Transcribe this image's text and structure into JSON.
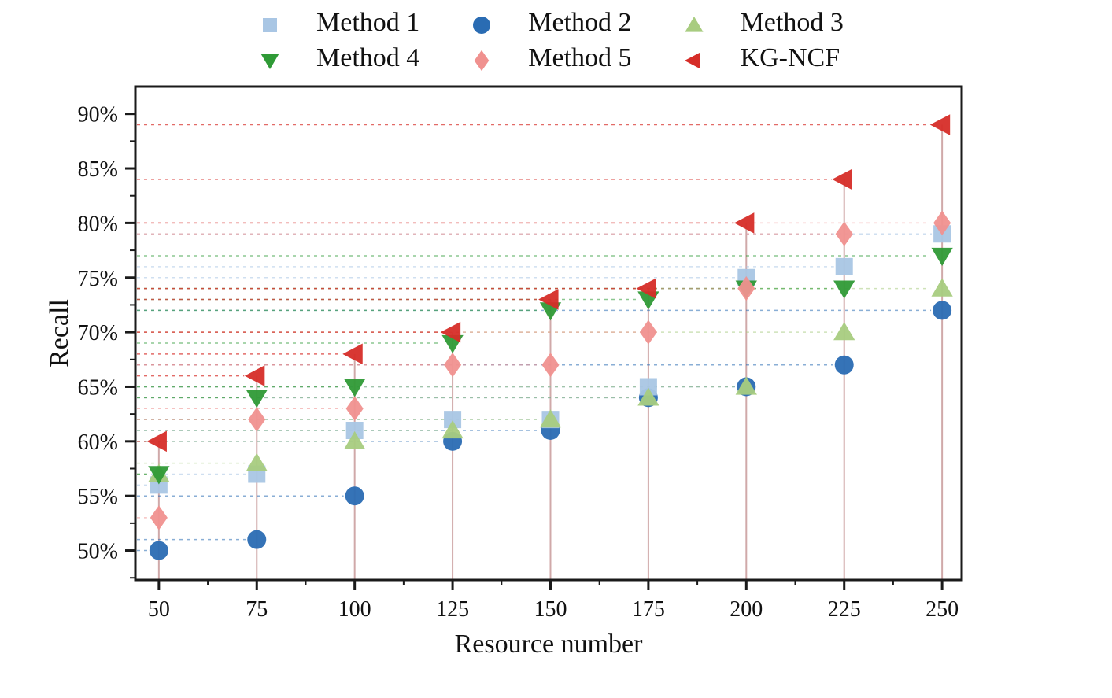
{
  "figure": {
    "background": "#ffffff",
    "frame_color": "#1a1a1a",
    "text_color": "#111111"
  },
  "chart_data": {
    "type": "scatter",
    "title": "",
    "xlabel": "Resource number",
    "ylabel": "Recall",
    "x": [
      50,
      75,
      100,
      125,
      150,
      175,
      200,
      225,
      250
    ],
    "series": [
      {
        "name": "Method 1",
        "marker": "square",
        "color": "#a9c6e4",
        "values": [
          56,
          57,
          61,
          62,
          62,
          65,
          75,
          76,
          79
        ]
      },
      {
        "name": "Method 2",
        "marker": "circle",
        "color": "#2a6cb3",
        "values": [
          50,
          51,
          55,
          60,
          61,
          64,
          65,
          67,
          72
        ]
      },
      {
        "name": "Method 3",
        "marker": "triangle-up",
        "color": "#a8cc80",
        "values": [
          57,
          58,
          60,
          61,
          62,
          64,
          65,
          70,
          74
        ]
      },
      {
        "name": "Method 4",
        "marker": "triangle-down",
        "color": "#2f9a36",
        "values": [
          57,
          64,
          65,
          69,
          72,
          73,
          74,
          74,
          77
        ]
      },
      {
        "name": "Method 5",
        "marker": "diamond",
        "color": "#f0918f",
        "values": [
          53,
          62,
          63,
          67,
          67,
          70,
          74,
          79,
          80
        ]
      },
      {
        "name": "KG-NCF",
        "marker": "triangle-left",
        "color": "#d62d28",
        "values": [
          60,
          66,
          68,
          70,
          73,
          74,
          80,
          84,
          89
        ]
      }
    ],
    "draw_order": [
      1,
      0,
      2,
      3,
      4,
      5
    ],
    "yticks": [
      50,
      55,
      60,
      65,
      70,
      75,
      80,
      85,
      90
    ],
    "ytick_suffix": "%",
    "xticks": [
      50,
      75,
      100,
      125,
      150,
      175,
      200,
      225,
      250
    ],
    "ylim": [
      47.3,
      92.5
    ],
    "xlim": [
      44,
      255
    ],
    "grid": false,
    "legend_position": "top",
    "leader_line_style": "dashed",
    "stem_color": "#c89b9b"
  }
}
